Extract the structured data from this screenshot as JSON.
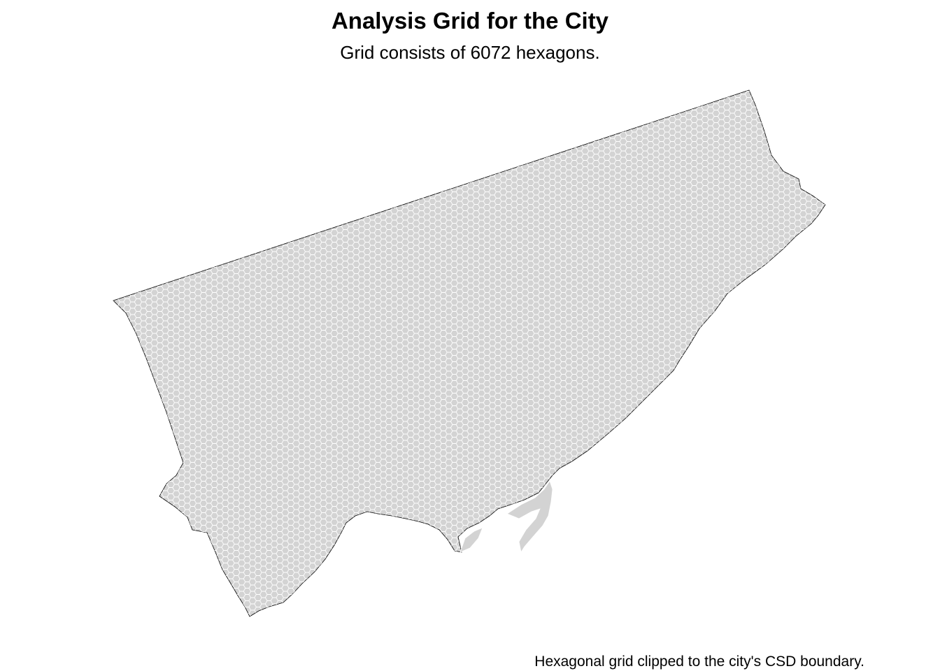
{
  "title": "Analysis Grid for the City",
  "subtitle": "Grid consists of 6072 hexagons.",
  "caption": "Hexagonal grid clipped to the city's CSD boundary.",
  "map": {
    "region": "city CSD boundary",
    "grid_type": "hexagonal",
    "hexagon_count": 6072,
    "fill_color": "#d3d3d3",
    "hex_stroke_color": "#ffffff",
    "boundary_color": "#000000",
    "background_color": "#ffffff"
  }
}
